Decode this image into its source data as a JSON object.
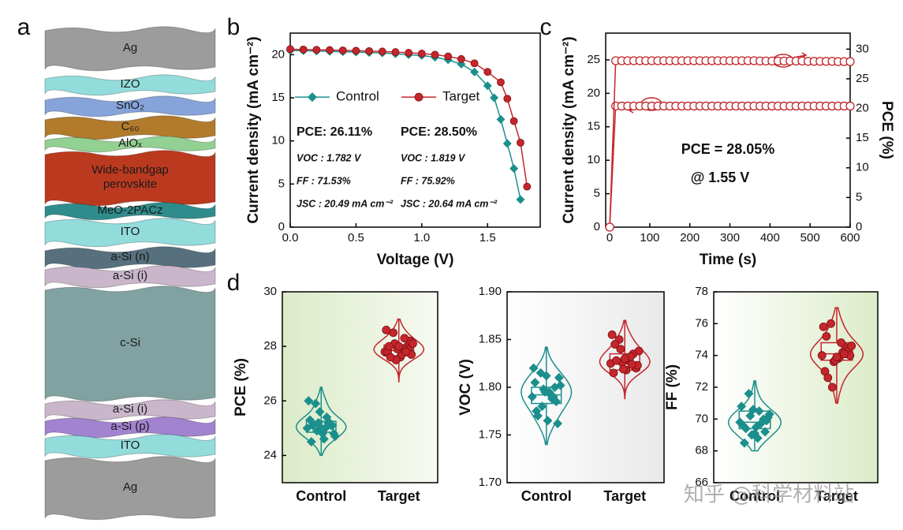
{
  "panel_labels": [
    "a",
    "b",
    "c",
    "d"
  ],
  "stack": {
    "layers": [
      {
        "label": "Ag",
        "color": "#9c9c9c"
      },
      {
        "label": "IZO",
        "color": "#93dcdc"
      },
      {
        "label": "SnO₂",
        "color": "#86a4da"
      },
      {
        "label": "C₆₀",
        "color": "#b27b2c"
      },
      {
        "label": "AlOₓ",
        "color": "#93d193"
      },
      {
        "label": "Wide-bandgap perovskite",
        "color": "#bb3a1f"
      },
      {
        "label": "MeO-2PACz",
        "color": "#2f8c8c"
      },
      {
        "label": "ITO",
        "color": "#93dcdc"
      },
      {
        "label": "a-Si (n)",
        "color": "#56707e"
      },
      {
        "label": "a-Si (i)",
        "color": "#cab6ca"
      },
      {
        "label": "c-Si",
        "color": "#82a2a2"
      },
      {
        "label": "a-Si (i)",
        "color": "#cab6ca"
      },
      {
        "label": "a-Si (p)",
        "color": "#a283d0"
      },
      {
        "label": "ITO",
        "color": "#93dcdc"
      },
      {
        "label": "Ag",
        "color": "#9c9c9c"
      }
    ]
  },
  "watermark": "知乎 @科学材料站",
  "chart_data": [
    {
      "type": "line",
      "xlabel": "Voltage (V)",
      "ylabel": "Current density (mA cm⁻²)",
      "xlim": [
        0,
        1.9
      ],
      "xticks": [
        {
          "value": 0,
          "label": "0.0"
        },
        0.5,
        {
          "value": 1,
          "label": "1.0"
        },
        1.5
      ],
      "ylim": [
        0,
        22.5
      ],
      "yticks": [
        0,
        5,
        10,
        15,
        20
      ],
      "legend": "center left",
      "series": [
        {
          "name": "Control",
          "color": "#1b8f8c",
          "marker": "diamond",
          "x": [
            0,
            0.1,
            0.2,
            0.3,
            0.4,
            0.5,
            0.6,
            0.7,
            0.8,
            0.9,
            1.0,
            1.1,
            1.2,
            1.3,
            1.4,
            1.5,
            1.55,
            1.6,
            1.65,
            1.7,
            1.75
          ],
          "values": [
            20.49,
            20.45,
            20.42,
            20.38,
            20.34,
            20.3,
            20.25,
            20.2,
            20.1,
            20.0,
            19.9,
            19.7,
            19.4,
            18.9,
            18.0,
            16.4,
            15.0,
            12.5,
            9.7,
            6.8,
            3.2
          ],
          "stats": [
            "PCE: 26.11%",
            "VOC : 1.782 V",
            "FF : 71.53%",
            "JSC : 20.49 mA cm⁻²"
          ]
        },
        {
          "name": "Target",
          "color": "#c4262c",
          "marker": "circle",
          "x": [
            0,
            0.1,
            0.2,
            0.3,
            0.4,
            0.5,
            0.6,
            0.7,
            0.8,
            0.9,
            1.0,
            1.1,
            1.2,
            1.3,
            1.4,
            1.5,
            1.6,
            1.65,
            1.7,
            1.75,
            1.8
          ],
          "values": [
            20.64,
            20.6,
            20.57,
            20.54,
            20.5,
            20.46,
            20.42,
            20.37,
            20.3,
            20.22,
            20.13,
            20.0,
            19.8,
            19.5,
            19.0,
            18.0,
            16.8,
            14.9,
            12.3,
            9.8,
            4.7
          ],
          "stats": [
            "PCE: 28.50%",
            "VOC : 1.819 V",
            "FF : 75.92%",
            "JSC : 20.64 mA cm⁻²"
          ]
        }
      ]
    },
    {
      "type": "line",
      "xlabel": "Time (s)",
      "ylabel": "Current density (mA cm⁻²)",
      "y2label": "PCE (%)",
      "xlim": [
        -10,
        600
      ],
      "xticks": [
        0,
        100,
        200,
        300,
        400,
        500,
        600
      ],
      "ylim": [
        0,
        29
      ],
      "yticks": [
        0,
        5,
        10,
        15,
        20,
        25
      ],
      "y2lim": [
        0,
        32.7
      ],
      "y2ticks": [
        0,
        5,
        10,
        15,
        20,
        25,
        30
      ],
      "annotations": [
        "PCE = 28.05%",
        "@ 1.55 V"
      ],
      "x": [
        0,
        15,
        30,
        45,
        60,
        75,
        90,
        105,
        120,
        135,
        150,
        165,
        180,
        195,
        210,
        225,
        240,
        255,
        270,
        285,
        300,
        315,
        330,
        345,
        360,
        375,
        390,
        405,
        420,
        435,
        450,
        465,
        480,
        495,
        510,
        525,
        540,
        555,
        570,
        585,
        600
      ],
      "series": [
        {
          "name": "Current density",
          "color": "#c4262c",
          "marker": "open-circle",
          "values": [
            0,
            18.1,
            18.1,
            18.1,
            18.1,
            18.1,
            18.1,
            18.1,
            18.1,
            18.1,
            18.1,
            18.1,
            18.1,
            18.1,
            18.1,
            18.1,
            18.1,
            18.1,
            18.1,
            18.1,
            18.1,
            18.1,
            18.1,
            18.1,
            18.1,
            18.1,
            18.1,
            18.1,
            18.1,
            18.1,
            18.1,
            18.1,
            18.1,
            18.1,
            18.1,
            18.1,
            18.1,
            18.1,
            18.1,
            18.1,
            18.1
          ]
        },
        {
          "name": "PCE",
          "color": "#c4262c",
          "marker": "open-circle",
          "axis": "y2",
          "values": [
            0,
            28.05,
            28.05,
            28.05,
            28.05,
            28.05,
            28.05,
            28.05,
            28.05,
            28.05,
            28.05,
            28.05,
            28.05,
            28.05,
            28.05,
            28.05,
            28.05,
            28.05,
            28.05,
            28.05,
            28.05,
            28.05,
            28.05,
            28.05,
            28.05,
            28.0,
            28.0,
            28.0,
            28.0,
            28.0,
            28.0,
            28.0,
            28.0,
            27.95,
            27.95,
            27.95,
            27.95,
            27.95,
            27.9,
            27.9,
            27.9
          ]
        }
      ]
    },
    {
      "type": "box",
      "ylabel": "PCE (%)",
      "categories": [
        "Control",
        "Target"
      ],
      "ylim": [
        23,
        30
      ],
      "yticks": [
        24,
        26,
        28,
        30
      ],
      "background": "#e6f0d6",
      "groups": [
        {
          "color": "#1b8f8c",
          "marker": "diamond",
          "box": {
            "min": 24.0,
            "q1": 24.85,
            "median": 25.1,
            "q3": 25.25,
            "max": 26.5
          },
          "values": [
            25.0,
            25.2,
            24.8,
            25.9,
            26.0,
            25.1,
            24.6,
            24.9,
            25.3,
            25.1,
            25.0,
            25.2,
            24.5,
            24.8,
            25.4,
            25.6,
            25.1,
            24.7,
            25.2,
            25.0
          ]
        },
        {
          "color": "#c4262c",
          "marker": "circle",
          "box": {
            "min": 26.7,
            "q1": 27.65,
            "median": 27.85,
            "q3": 28.05,
            "max": 29.0
          },
          "values": [
            27.8,
            28.0,
            27.6,
            28.5,
            28.6,
            27.9,
            27.7,
            28.1,
            27.8,
            28.2,
            27.9,
            27.5,
            28.0,
            27.7,
            28.3,
            27.9,
            27.6,
            28.1,
            27.8,
            28.0
          ]
        }
      ]
    },
    {
      "type": "box",
      "ylabel": "VOC (V)",
      "categories": [
        "Control",
        "Target"
      ],
      "ylim": [
        1.7,
        1.9
      ],
      "yticks": [
        {
          "value": 1.7,
          "label": "1.70"
        },
        1.75,
        {
          "value": 1.8,
          "label": "1.80"
        },
        1.85,
        {
          "value": 1.9,
          "label": "1.90"
        }
      ],
      "background": "#f1f1f1",
      "groups": [
        {
          "color": "#1b8f8c",
          "marker": "diamond",
          "box": {
            "min": 1.74,
            "q1": 1.783,
            "median": 1.792,
            "q3": 1.8,
            "max": 1.842
          },
          "values": [
            1.79,
            1.8,
            1.765,
            1.815,
            1.82,
            1.785,
            1.795,
            1.78,
            1.805,
            1.762,
            1.792,
            1.798,
            1.775,
            1.81,
            1.788,
            1.795,
            1.77,
            1.802,
            1.79,
            1.812
          ]
        },
        {
          "color": "#c4262c",
          "marker": "circle",
          "box": {
            "min": 1.788,
            "q1": 1.818,
            "median": 1.825,
            "q3": 1.835,
            "max": 1.87
          },
          "values": [
            1.825,
            1.835,
            1.818,
            1.85,
            1.855,
            1.822,
            1.828,
            1.84,
            1.815,
            1.82,
            1.83,
            1.826,
            1.845,
            1.823,
            1.832,
            1.819,
            1.828,
            1.838,
            1.824,
            1.83
          ]
        }
      ]
    },
    {
      "type": "box",
      "ylabel": "FF (%)",
      "categories": [
        "Control",
        "Target"
      ],
      "ylim": [
        66,
        78
      ],
      "yticks": [
        66,
        68,
        70,
        72,
        74,
        76,
        78
      ],
      "background": "#e6f0d6",
      "groups": [
        {
          "color": "#1b8f8c",
          "marker": "diamond",
          "box": {
            "min": 68.0,
            "q1": 69.4,
            "median": 69.8,
            "q3": 70.5,
            "max": 72.4
          },
          "values": [
            69.8,
            70.0,
            69.5,
            71.6,
            70.8,
            69.2,
            68.8,
            70.2,
            69.6,
            69.9,
            70.5,
            69.0,
            68.5,
            70.1,
            69.7,
            70.6,
            69.4,
            70.3,
            69.8,
            69.1
          ]
        },
        {
          "color": "#c4262c",
          "marker": "circle",
          "box": {
            "min": 71.0,
            "q1": 73.7,
            "median": 74.1,
            "q3": 74.8,
            "max": 77.0
          },
          "values": [
            74.0,
            74.5,
            73.8,
            76.0,
            75.8,
            74.1,
            73.9,
            72.0,
            73.0,
            74.3,
            74.8,
            73.6,
            75.2,
            74.0,
            74.2,
            73.7,
            72.6,
            74.6,
            74.1,
            73.9
          ]
        }
      ]
    }
  ]
}
